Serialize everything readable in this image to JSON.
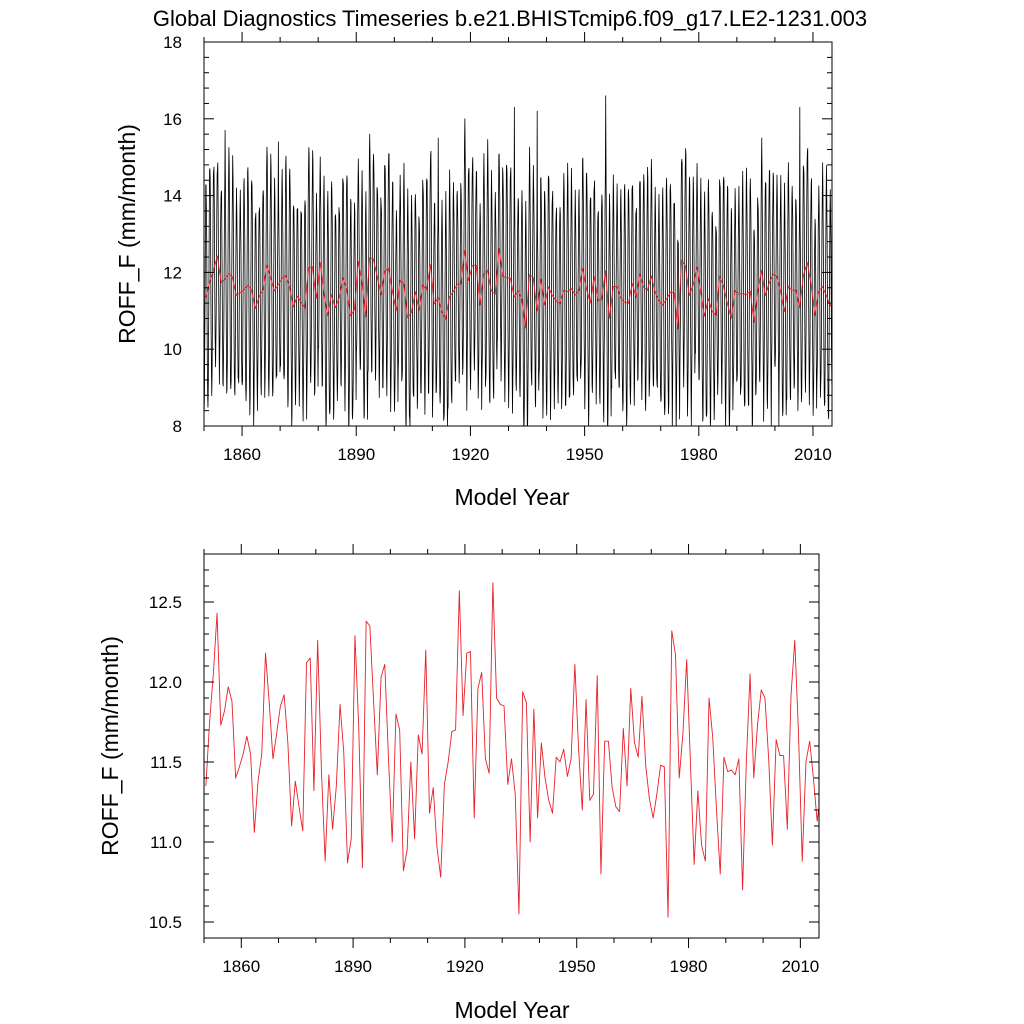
{
  "title": "Global Diagnostics Timeseries b.e21.BHISTcmip6.f09_g17.LE2-1231.003",
  "colors": {
    "monthly": "#000000",
    "annual": "#e8202a",
    "axis": "#000000",
    "background": "#ffffff"
  },
  "chart_data": [
    {
      "type": "line",
      "name": "top-panel",
      "xlabel": "Model Year",
      "ylabel": "ROFF_F (mm/month)",
      "xlim": [
        1850,
        2015
      ],
      "ylim": [
        8,
        18
      ],
      "xticks": [
        1860,
        1890,
        1920,
        1950,
        1980,
        2010
      ],
      "xtick_labels": [
        "1860",
        "1890",
        "1920",
        "1950",
        "1980",
        "2010"
      ],
      "yticks": [
        8,
        10,
        12,
        14,
        16,
        18
      ],
      "ytick_labels": [
        "8",
        "10",
        "12",
        "14",
        "16",
        "18"
      ],
      "series": [
        {
          "name": "monthly",
          "kind": "seasonal",
          "start_year": 1850,
          "months": 1980,
          "annual_mean_ref": "annual",
          "seasonal_amplitude": 2.8,
          "peak_month": 6,
          "highlights": {
            "1855": 15.7,
            "1869": 15.4,
            "1893": 15.6,
            "1911": 15.5,
            "1918": 16.0,
            "1931": 16.3,
            "1937": 16.2,
            "1955": 16.6,
            "1996": 15.5,
            "2006": 16.3
          },
          "lows": {
            "1850": 8.4,
            "1864": 8.4,
            "1904": 8.2,
            "1913": 8.2,
            "1935": 8.1,
            "1955": 8.1,
            "1973": 7.9,
            "1978": 8.0,
            "1999": 8.0,
            "2001": 8.0
          }
        },
        {
          "name": "annual",
          "ref": "annual"
        }
      ]
    },
    {
      "type": "line",
      "name": "bottom-panel",
      "xlabel": "Model Year",
      "ylabel": "ROFF_F (mm/month)",
      "xlim": [
        1850,
        2015
      ],
      "ylim": [
        10.4,
        12.8
      ],
      "xticks": [
        1860,
        1890,
        1920,
        1950,
        1980,
        2010
      ],
      "xtick_labels": [
        "1860",
        "1890",
        "1920",
        "1950",
        "1980",
        "2010"
      ],
      "yticks": [
        10.5,
        11.0,
        11.5,
        12.0,
        12.5
      ],
      "ytick_labels": [
        "10.5",
        "11.0",
        "11.5",
        "12.0",
        "12.5"
      ],
      "series": [
        {
          "name": "annual",
          "ref": "annual"
        }
      ]
    }
  ],
  "annual": {
    "start_year": 1850,
    "values": [
      11.35,
      11.75,
      12.05,
      12.43,
      11.73,
      11.82,
      11.97,
      11.88,
      11.4,
      11.47,
      11.55,
      11.66,
      11.55,
      11.06,
      11.38,
      11.55,
      12.18,
      11.87,
      11.52,
      11.68,
      11.85,
      11.92,
      11.62,
      11.1,
      11.38,
      11.22,
      11.07,
      12.12,
      12.15,
      11.32,
      12.26,
      11.45,
      10.88,
      11.42,
      11.08,
      11.35,
      11.86,
      11.56,
      10.87,
      11.02,
      12.29,
      11.73,
      10.84,
      12.38,
      12.35,
      11.88,
      11.42,
      12.03,
      12.11,
      11.52,
      11.0,
      11.8,
      11.7,
      10.82,
      10.95,
      11.5,
      11.02,
      11.67,
      11.55,
      12.2,
      11.18,
      11.34,
      10.97,
      10.78,
      11.36,
      11.5,
      11.69,
      11.7,
      12.57,
      11.79,
      12.18,
      12.19,
      11.15,
      11.96,
      12.06,
      11.52,
      11.43,
      12.62,
      11.9,
      11.86,
      11.85,
      11.36,
      11.52,
      11.3,
      10.55,
      11.94,
      11.87,
      11.0,
      11.83,
      11.15,
      11.62,
      11.4,
      11.26,
      11.18,
      11.53,
      11.5,
      11.58,
      11.41,
      11.52,
      12.11,
      11.58,
      11.2,
      11.89,
      11.26,
      11.3,
      12.04,
      10.8,
      11.63,
      11.63,
      11.34,
      11.22,
      11.19,
      11.71,
      11.35,
      11.96,
      11.62,
      11.53,
      11.91,
      11.48,
      11.27,
      11.15,
      11.3,
      11.48,
      11.47,
      10.53,
      12.32,
      12.17,
      11.4,
      11.68,
      12.14,
      11.5,
      10.86,
      11.32,
      10.98,
      10.88,
      11.9,
      11.65,
      11.2,
      10.8,
      11.53,
      11.44,
      11.45,
      11.42,
      11.52,
      10.7,
      11.5,
      12.05,
      11.4,
      11.73,
      11.95,
      11.9,
      11.52,
      10.98,
      11.64,
      11.54,
      11.54,
      11.08,
      11.92,
      12.26,
      11.68,
      10.88,
      11.5,
      11.63,
      11.4,
      11.13,
      11.31
    ]
  }
}
